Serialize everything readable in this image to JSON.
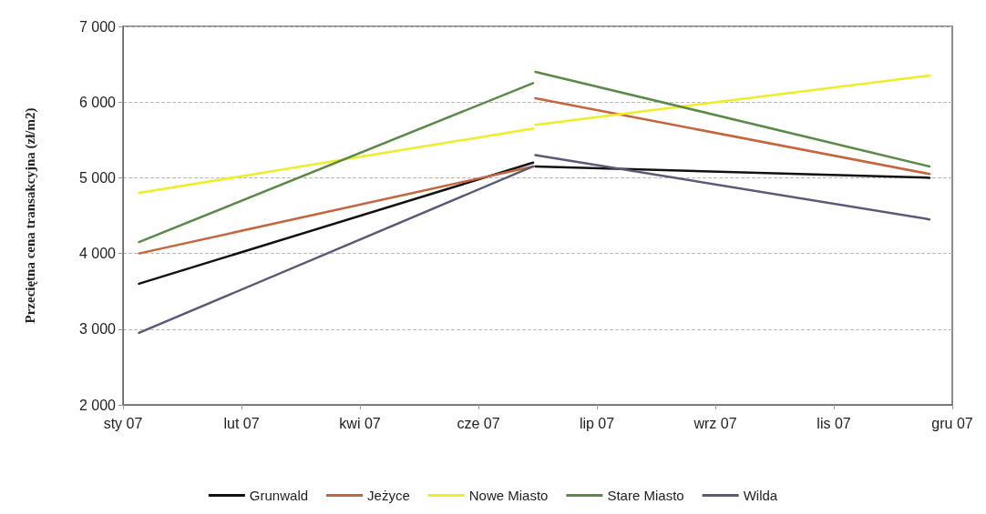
{
  "chart_data": {
    "type": "line",
    "ylabel": "Przeciętna cena transakcyjna (zł/m2)",
    "x": [
      "2007-01-08",
      "2007-06-30"
    ],
    "series": [
      {
        "name": "Grunwald",
        "color": "#111111",
        "values": [
          3600,
          5200
        ]
      },
      {
        "name": "Jeżyce",
        "color": "#c8643c",
        "values": [
          4000,
          5150
        ]
      },
      {
        "name": "Nowe Miasto",
        "color": "#eeee22",
        "values": [
          4800,
          5650
        ]
      },
      {
        "name": "Stare Miasto",
        "color": "#5a8a46",
        "values": [
          4150,
          6250
        ]
      },
      {
        "name": "Wilda",
        "color": "#5a5a78",
        "values": [
          2950,
          5150
        ]
      },
      {
        "color": "#111111",
        "x": [
          "2007-07-01",
          "2007-12-21"
        ],
        "values": [
          5150,
          5000
        ]
      },
      {
        "color": "#c8643c",
        "x": [
          "2007-07-01",
          "2007-12-21"
        ],
        "values": [
          6050,
          5050
        ]
      },
      {
        "color": "#eeee22",
        "x": [
          "2007-07-01",
          "2007-12-21"
        ],
        "values": [
          5700,
          6350
        ]
      },
      {
        "color": "#5a8a46",
        "x": [
          "2007-07-01",
          "2007-12-21"
        ],
        "values": [
          6400,
          5150
        ]
      },
      {
        "color": "#5a5a78",
        "x": [
          "2007-07-01",
          "2007-12-21"
        ],
        "values": [
          5300,
          4450
        ]
      }
    ],
    "xlim": [
      "2007-01-01",
      "2007-12-31"
    ],
    "xticks": [
      {
        "value": "2007-01-01",
        "label": "sty 07"
      },
      {
        "value": "2007-02-22",
        "label": "lut 07"
      },
      {
        "value": "2007-04-15",
        "label": "kwi 07"
      },
      {
        "value": "2007-06-06",
        "label": "cze 07"
      },
      {
        "value": "2007-07-28",
        "label": "lip 07"
      },
      {
        "value": "2007-09-18",
        "label": "wrz 07"
      },
      {
        "value": "2007-11-09",
        "label": "lis 07"
      },
      {
        "value": "2007-12-31",
        "label": "gru 07"
      }
    ],
    "ylim": [
      2000,
      7000
    ],
    "yticks": [
      {
        "value": 2000,
        "label": "2 000"
      },
      {
        "value": 3000,
        "label": "3 000"
      },
      {
        "value": 4000,
        "label": "4 000"
      },
      {
        "value": 5000,
        "label": "5 000"
      },
      {
        "value": 6000,
        "label": "6 000"
      },
      {
        "value": 7000,
        "label": "7 000"
      }
    ],
    "grid": "y",
    "legend": "bottom",
    "marker": "none",
    "line_style": "solid"
  }
}
